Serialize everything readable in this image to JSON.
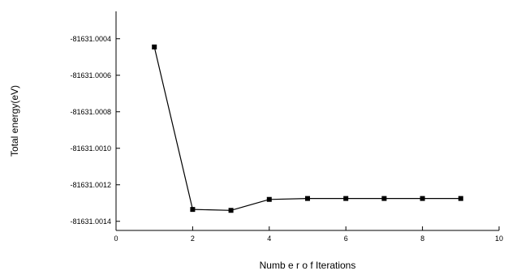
{
  "chart_data": {
    "type": "line",
    "title": "",
    "xlabel": "Numb e r o f Iterations",
    "ylabel": "Total energy(eV)",
    "xlim": [
      0,
      10
    ],
    "ylim": [
      -81631.00145,
      -81631.00025
    ],
    "x_ticks": [
      0,
      2,
      4,
      6,
      8,
      10
    ],
    "x_tick_labels": [
      "0",
      "2",
      "4",
      "6",
      "8",
      "10"
    ],
    "y_ticks": [
      -81631.0004,
      -81631.0006,
      -81631.0008,
      -81631.001,
      -81631.0012,
      -81631.0014
    ],
    "y_tick_labels": [
      "-81631.0004",
      "-81631.0006",
      "-81631.0008",
      "-81631.0010",
      "-81631.0012",
      "-81631.0014"
    ],
    "grid": false,
    "legend": "none",
    "series": [
      {
        "marker": "square",
        "color": "#000000",
        "x": [
          1,
          2,
          3,
          4,
          5,
          6,
          7,
          8,
          9
        ],
        "y": [
          -81631.000445,
          -81631.001335,
          -81631.00134,
          -81631.00128,
          -81631.001275,
          -81631.001275,
          -81631.001275,
          -81631.001275,
          -81631.001275
        ]
      }
    ]
  }
}
